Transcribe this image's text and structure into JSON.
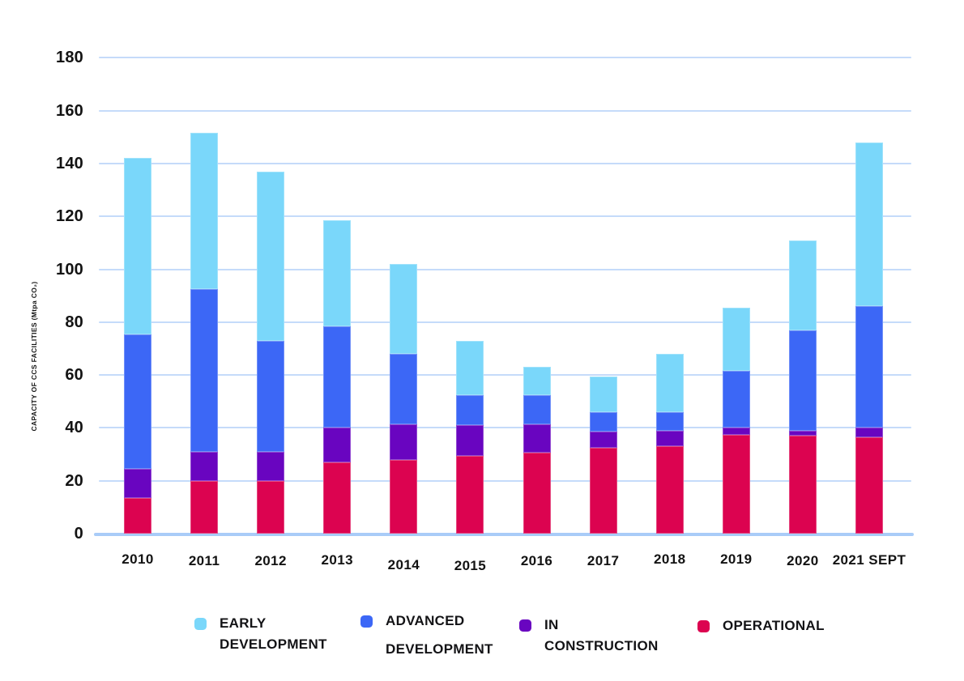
{
  "chart_data": {
    "type": "bar",
    "stacked": true,
    "title": "",
    "xlabel": "",
    "ylabel": "CAPACITY OF CCS FACILITIES (Mtpa CO₂)",
    "ylim": [
      0,
      180
    ],
    "yticks": [
      0,
      20,
      40,
      60,
      80,
      100,
      120,
      140,
      160,
      180
    ],
    "grid": "horizontal",
    "legend_position": "bottom",
    "categories": [
      "2010",
      "2011",
      "2012",
      "2013",
      "2014",
      "2015",
      "2016",
      "2017",
      "2018",
      "2019",
      "2020",
      "2021 SEPT"
    ],
    "stack_order_bottom_to_top": [
      "OPERATIONAL",
      "IN CONSTRUCTION",
      "ADVANCED DEVELOPMENT",
      "EARLY DEVELOPMENT"
    ],
    "series": [
      {
        "name": "EARLY DEVELOPMENT",
        "label_lines": [
          "EARLY",
          "DEVELOPMENT"
        ],
        "color": "#7AD7FA",
        "values": [
          66.5,
          59,
          64,
          40,
          34,
          20.5,
          10.5,
          13.5,
          22,
          24,
          34,
          62
        ]
      },
      {
        "name": "ADVANCED DEVELOPMENT",
        "label_lines": [
          "ADVANCED",
          "DEVELOPMENT"
        ],
        "color": "#3C67F6",
        "values": [
          51,
          61.5,
          42,
          38.5,
          26.5,
          11.5,
          11,
          7.5,
          7,
          21.5,
          38,
          46
        ]
      },
      {
        "name": "IN CONSTRUCTION",
        "label_lines": [
          "IN",
          "CONSTRUCTION"
        ],
        "color": "#6905C0",
        "values": [
          11,
          11,
          11,
          13,
          13.5,
          11.5,
          11,
          6,
          6,
          2.5,
          2,
          3.5
        ]
      },
      {
        "name": "OPERATIONAL",
        "label_lines": [
          "OPERATIONAL"
        ],
        "color": "#DC0350",
        "values": [
          13.5,
          20,
          20,
          27,
          28,
          29.5,
          30.5,
          32.5,
          33,
          37.5,
          37,
          36.5
        ]
      }
    ],
    "totals": [
      142,
      151.5,
      137,
      118.5,
      102,
      73,
      63,
      59.5,
      68,
      85.5,
      111,
      148
    ],
    "colors": {
      "gridline": "#C5DBFA",
      "axis_line": "#A9CCF8",
      "text": "#131313"
    }
  }
}
